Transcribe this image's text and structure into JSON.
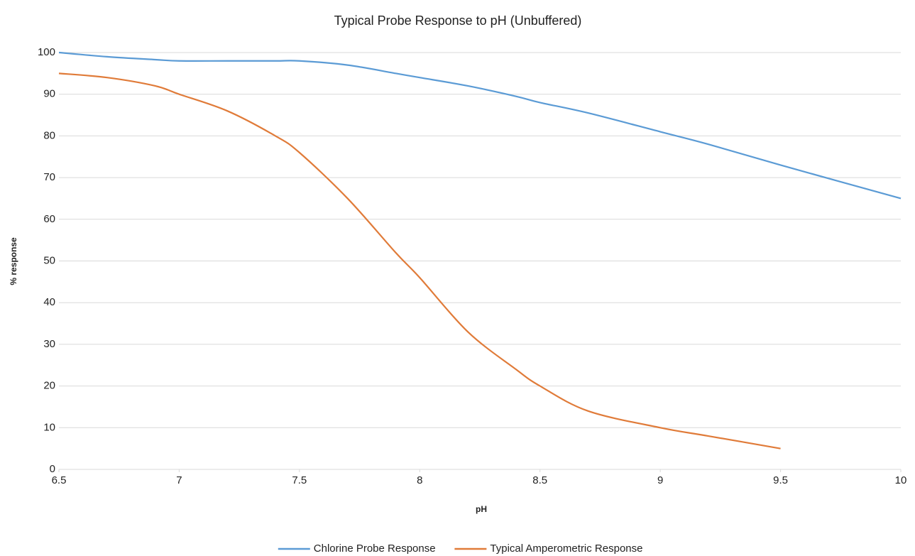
{
  "chart_data": {
    "type": "line",
    "title": "Typical Probe Response to pH (Unbuffered)",
    "x_label": "pH",
    "y_label": "% response",
    "x": [
      6.5,
      6.7,
      6.9,
      7.0,
      7.2,
      7.4,
      7.5,
      7.7,
      7.9,
      8.0,
      8.2,
      8.4,
      8.5,
      8.7,
      9.0,
      9.2,
      9.5,
      10
    ],
    "series": [
      {
        "name": "Chlorine Probe Response",
        "color": "#5b9bd5",
        "values": [
          100,
          99,
          98.3,
          98,
          98,
          98,
          98,
          97,
          95,
          94,
          92,
          89.5,
          88,
          85.5,
          81,
          78,
          73,
          65
        ]
      },
      {
        "name": "Typical Amperometric Response",
        "color": "#e07b39",
        "values": [
          95,
          94,
          92,
          90,
          86,
          80,
          76,
          65,
          52,
          46,
          33,
          24,
          20,
          14,
          10,
          8,
          5,
          null
        ]
      }
    ],
    "xlim": [
      6.5,
      10
    ],
    "xticks": [
      6.5,
      7,
      7.5,
      8,
      8.5,
      9,
      9.5,
      10
    ],
    "ylim": [
      0,
      100
    ],
    "yticks": [
      0,
      10,
      20,
      30,
      40,
      50,
      60,
      70,
      80,
      90,
      100
    ],
    "grid": true,
    "legend": "bottom"
  }
}
